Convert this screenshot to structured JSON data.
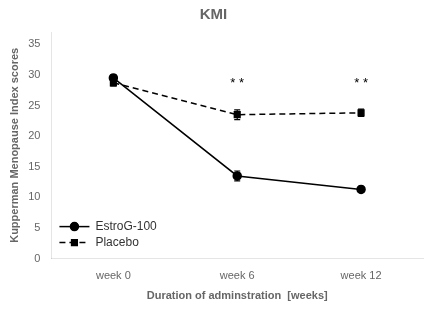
{
  "chart_data": {
    "type": "line",
    "title": "KMI",
    "x_label": "Duration of adminstration  [weeks]",
    "y_label": "Kupperman Menopause Index scores",
    "categories": [
      "week 0",
      "week 6",
      "week 12"
    ],
    "series": [
      {
        "name": "EstroG-100",
        "color": "#000000",
        "marker": "circle",
        "line_style": "solid",
        "values": [
          29.5,
          13.5,
          11.3
        ],
        "errors": [
          0.5,
          0.8,
          0.5
        ]
      },
      {
        "name": "Placebo",
        "color": "#000000",
        "marker": "square",
        "line_style": "dashed",
        "values": [
          28.7,
          23.5,
          23.8
        ],
        "errors": [
          0.5,
          0.8,
          0.6
        ]
      }
    ],
    "annotations": [
      {
        "text": "* *",
        "x": "week 6",
        "y": 27.5,
        "color": "#000000"
      },
      {
        "text": "* *",
        "x": "week 12",
        "y": 27.5,
        "color": "#000000"
      }
    ],
    "ylim": [
      0,
      37
    ],
    "yticks": [
      0,
      5,
      10,
      15,
      20,
      25,
      30,
      35
    ],
    "grid": false,
    "legend": "lower left"
  }
}
